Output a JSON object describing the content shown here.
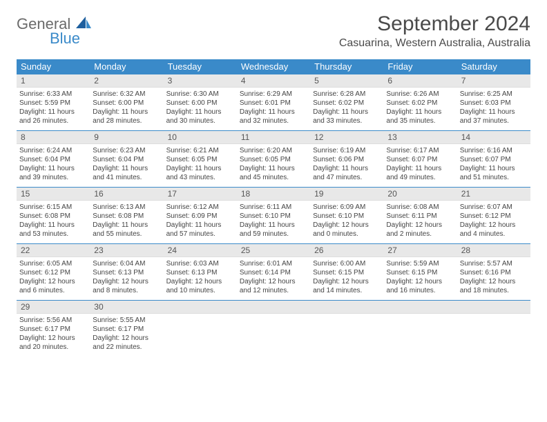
{
  "brand": {
    "general": "General",
    "blue": "Blue"
  },
  "title": "September 2024",
  "location": "Casuarina, Western Australia, Australia",
  "colors": {
    "header_bg": "#3a8ac9",
    "header_text": "#ffffff",
    "daynum_bg": "#e8e8e8",
    "text": "#444444",
    "border": "#3a8ac9"
  },
  "dow": [
    "Sunday",
    "Monday",
    "Tuesday",
    "Wednesday",
    "Thursday",
    "Friday",
    "Saturday"
  ],
  "weeks": [
    [
      {
        "n": "1",
        "sr": "Sunrise: 6:33 AM",
        "ss": "Sunset: 5:59 PM",
        "d1": "Daylight: 11 hours",
        "d2": "and 26 minutes."
      },
      {
        "n": "2",
        "sr": "Sunrise: 6:32 AM",
        "ss": "Sunset: 6:00 PM",
        "d1": "Daylight: 11 hours",
        "d2": "and 28 minutes."
      },
      {
        "n": "3",
        "sr": "Sunrise: 6:30 AM",
        "ss": "Sunset: 6:00 PM",
        "d1": "Daylight: 11 hours",
        "d2": "and 30 minutes."
      },
      {
        "n": "4",
        "sr": "Sunrise: 6:29 AM",
        "ss": "Sunset: 6:01 PM",
        "d1": "Daylight: 11 hours",
        "d2": "and 32 minutes."
      },
      {
        "n": "5",
        "sr": "Sunrise: 6:28 AM",
        "ss": "Sunset: 6:02 PM",
        "d1": "Daylight: 11 hours",
        "d2": "and 33 minutes."
      },
      {
        "n": "6",
        "sr": "Sunrise: 6:26 AM",
        "ss": "Sunset: 6:02 PM",
        "d1": "Daylight: 11 hours",
        "d2": "and 35 minutes."
      },
      {
        "n": "7",
        "sr": "Sunrise: 6:25 AM",
        "ss": "Sunset: 6:03 PM",
        "d1": "Daylight: 11 hours",
        "d2": "and 37 minutes."
      }
    ],
    [
      {
        "n": "8",
        "sr": "Sunrise: 6:24 AM",
        "ss": "Sunset: 6:04 PM",
        "d1": "Daylight: 11 hours",
        "d2": "and 39 minutes."
      },
      {
        "n": "9",
        "sr": "Sunrise: 6:23 AM",
        "ss": "Sunset: 6:04 PM",
        "d1": "Daylight: 11 hours",
        "d2": "and 41 minutes."
      },
      {
        "n": "10",
        "sr": "Sunrise: 6:21 AM",
        "ss": "Sunset: 6:05 PM",
        "d1": "Daylight: 11 hours",
        "d2": "and 43 minutes."
      },
      {
        "n": "11",
        "sr": "Sunrise: 6:20 AM",
        "ss": "Sunset: 6:05 PM",
        "d1": "Daylight: 11 hours",
        "d2": "and 45 minutes."
      },
      {
        "n": "12",
        "sr": "Sunrise: 6:19 AM",
        "ss": "Sunset: 6:06 PM",
        "d1": "Daylight: 11 hours",
        "d2": "and 47 minutes."
      },
      {
        "n": "13",
        "sr": "Sunrise: 6:17 AM",
        "ss": "Sunset: 6:07 PM",
        "d1": "Daylight: 11 hours",
        "d2": "and 49 minutes."
      },
      {
        "n": "14",
        "sr": "Sunrise: 6:16 AM",
        "ss": "Sunset: 6:07 PM",
        "d1": "Daylight: 11 hours",
        "d2": "and 51 minutes."
      }
    ],
    [
      {
        "n": "15",
        "sr": "Sunrise: 6:15 AM",
        "ss": "Sunset: 6:08 PM",
        "d1": "Daylight: 11 hours",
        "d2": "and 53 minutes."
      },
      {
        "n": "16",
        "sr": "Sunrise: 6:13 AM",
        "ss": "Sunset: 6:08 PM",
        "d1": "Daylight: 11 hours",
        "d2": "and 55 minutes."
      },
      {
        "n": "17",
        "sr": "Sunrise: 6:12 AM",
        "ss": "Sunset: 6:09 PM",
        "d1": "Daylight: 11 hours",
        "d2": "and 57 minutes."
      },
      {
        "n": "18",
        "sr": "Sunrise: 6:11 AM",
        "ss": "Sunset: 6:10 PM",
        "d1": "Daylight: 11 hours",
        "d2": "and 59 minutes."
      },
      {
        "n": "19",
        "sr": "Sunrise: 6:09 AM",
        "ss": "Sunset: 6:10 PM",
        "d1": "Daylight: 12 hours",
        "d2": "and 0 minutes."
      },
      {
        "n": "20",
        "sr": "Sunrise: 6:08 AM",
        "ss": "Sunset: 6:11 PM",
        "d1": "Daylight: 12 hours",
        "d2": "and 2 minutes."
      },
      {
        "n": "21",
        "sr": "Sunrise: 6:07 AM",
        "ss": "Sunset: 6:12 PM",
        "d1": "Daylight: 12 hours",
        "d2": "and 4 minutes."
      }
    ],
    [
      {
        "n": "22",
        "sr": "Sunrise: 6:05 AM",
        "ss": "Sunset: 6:12 PM",
        "d1": "Daylight: 12 hours",
        "d2": "and 6 minutes."
      },
      {
        "n": "23",
        "sr": "Sunrise: 6:04 AM",
        "ss": "Sunset: 6:13 PM",
        "d1": "Daylight: 12 hours",
        "d2": "and 8 minutes."
      },
      {
        "n": "24",
        "sr": "Sunrise: 6:03 AM",
        "ss": "Sunset: 6:13 PM",
        "d1": "Daylight: 12 hours",
        "d2": "and 10 minutes."
      },
      {
        "n": "25",
        "sr": "Sunrise: 6:01 AM",
        "ss": "Sunset: 6:14 PM",
        "d1": "Daylight: 12 hours",
        "d2": "and 12 minutes."
      },
      {
        "n": "26",
        "sr": "Sunrise: 6:00 AM",
        "ss": "Sunset: 6:15 PM",
        "d1": "Daylight: 12 hours",
        "d2": "and 14 minutes."
      },
      {
        "n": "27",
        "sr": "Sunrise: 5:59 AM",
        "ss": "Sunset: 6:15 PM",
        "d1": "Daylight: 12 hours",
        "d2": "and 16 minutes."
      },
      {
        "n": "28",
        "sr": "Sunrise: 5:57 AM",
        "ss": "Sunset: 6:16 PM",
        "d1": "Daylight: 12 hours",
        "d2": "and 18 minutes."
      }
    ],
    [
      {
        "n": "29",
        "sr": "Sunrise: 5:56 AM",
        "ss": "Sunset: 6:17 PM",
        "d1": "Daylight: 12 hours",
        "d2": "and 20 minutes."
      },
      {
        "n": "30",
        "sr": "Sunrise: 5:55 AM",
        "ss": "Sunset: 6:17 PM",
        "d1": "Daylight: 12 hours",
        "d2": "and 22 minutes."
      },
      {
        "empty": true
      },
      {
        "empty": true
      },
      {
        "empty": true
      },
      {
        "empty": true
      },
      {
        "empty": true
      }
    ]
  ]
}
